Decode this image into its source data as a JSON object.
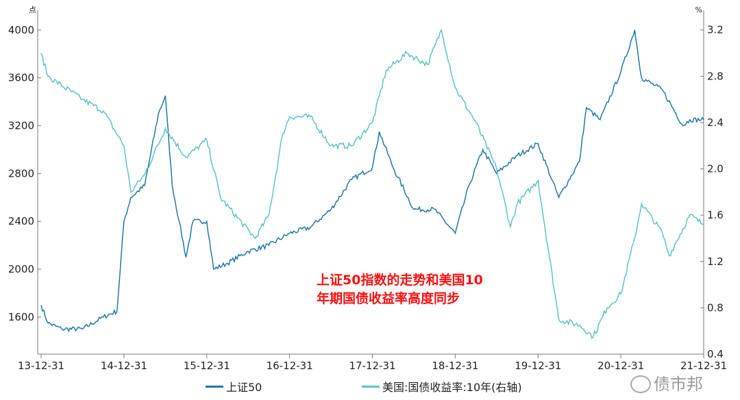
{
  "chart_data": {
    "type": "line",
    "left_axis": {
      "unit": "点",
      "ticks": [
        1600,
        2000,
        2400,
        2800,
        3200,
        3600,
        4000
      ],
      "range": [
        1290,
        4165
      ]
    },
    "right_axis": {
      "unit": "%",
      "ticks": [
        0.4,
        0.8,
        1.2,
        1.6,
        2.0,
        2.4,
        2.8,
        3.2
      ],
      "tick_labels": [
        "0.4",
        "0.8",
        "1.2",
        "1.6",
        "2.0",
        "2.4",
        "2.8",
        "3.2"
      ],
      "range": [
        0.4,
        3.37
      ]
    },
    "x_ticks": [
      "13-12-31",
      "14-12-31",
      "15-12-31",
      "16-12-31",
      "17-12-31",
      "18-12-31",
      "19-12-31",
      "20-12-31",
      "21-12-31"
    ],
    "x_range": [
      "2013-12",
      "2021-12"
    ],
    "grid": false,
    "legend_placement": "bottom",
    "series": [
      {
        "name": "上证50",
        "axis": "left",
        "color": "#1f77a8",
        "x": [
          "2013-12",
          "2014-01",
          "2014-03",
          "2014-06",
          "2014-09",
          "2014-11",
          "2014-12",
          "2015-01",
          "2015-03",
          "2015-05",
          "2015-06",
          "2015-07",
          "2015-08",
          "2015-09",
          "2015-10",
          "2015-12",
          "2016-01",
          "2016-03",
          "2016-06",
          "2016-09",
          "2016-12",
          "2017-03",
          "2017-06",
          "2017-09",
          "2017-12",
          "2018-01",
          "2018-03",
          "2018-06",
          "2018-09",
          "2018-12",
          "2019-02",
          "2019-04",
          "2019-06",
          "2019-09",
          "2019-12",
          "2020-02",
          "2020-03",
          "2020-06",
          "2020-07",
          "2020-09",
          "2020-12",
          "2021-02",
          "2021-03",
          "2021-06",
          "2021-09",
          "2021-10",
          "2021-12"
        ],
        "values": [
          1700,
          1550,
          1500,
          1500,
          1600,
          1650,
          2400,
          2600,
          2700,
          3300,
          3450,
          2700,
          2400,
          2100,
          2400,
          2400,
          2000,
          2050,
          2150,
          2200,
          2300,
          2350,
          2500,
          2750,
          2850,
          3150,
          2850,
          2500,
          2500,
          2300,
          2700,
          3000,
          2800,
          2950,
          3050,
          2750,
          2600,
          2900,
          3350,
          3250,
          3650,
          4000,
          3600,
          3500,
          3200,
          3250,
          3250
        ]
      },
      {
        "name": "美国:国债收益率:10年(右轴)",
        "axis": "right",
        "color": "#5cc3c3",
        "x": [
          "2013-12",
          "2014-01",
          "2014-06",
          "2014-09",
          "2014-12",
          "2015-01",
          "2015-03",
          "2015-06",
          "2015-09",
          "2015-12",
          "2016-02",
          "2016-07",
          "2016-09",
          "2016-11",
          "2016-12",
          "2017-03",
          "2017-06",
          "2017-09",
          "2017-12",
          "2018-02",
          "2018-05",
          "2018-08",
          "2018-10",
          "2018-12",
          "2019-03",
          "2019-06",
          "2019-08",
          "2019-09",
          "2019-12",
          "2020-03",
          "2020-06",
          "2020-08",
          "2020-10",
          "2020-12",
          "2021-02",
          "2021-03",
          "2021-06",
          "2021-07",
          "2021-10",
          "2021-12"
        ],
        "values": [
          3.0,
          2.8,
          2.6,
          2.5,
          2.2,
          1.8,
          1.95,
          2.35,
          2.1,
          2.25,
          1.75,
          1.4,
          1.6,
          2.3,
          2.45,
          2.45,
          2.2,
          2.2,
          2.4,
          2.85,
          3.0,
          2.9,
          3.2,
          2.7,
          2.4,
          2.0,
          1.5,
          1.7,
          1.9,
          0.7,
          0.65,
          0.55,
          0.8,
          0.92,
          1.4,
          1.7,
          1.45,
          1.25,
          1.6,
          1.52
        ]
      }
    ],
    "annotation": [
      "上证50指数的走势和美国10",
      "年期国债收益率高度同步"
    ]
  },
  "watermark": "债市邦"
}
